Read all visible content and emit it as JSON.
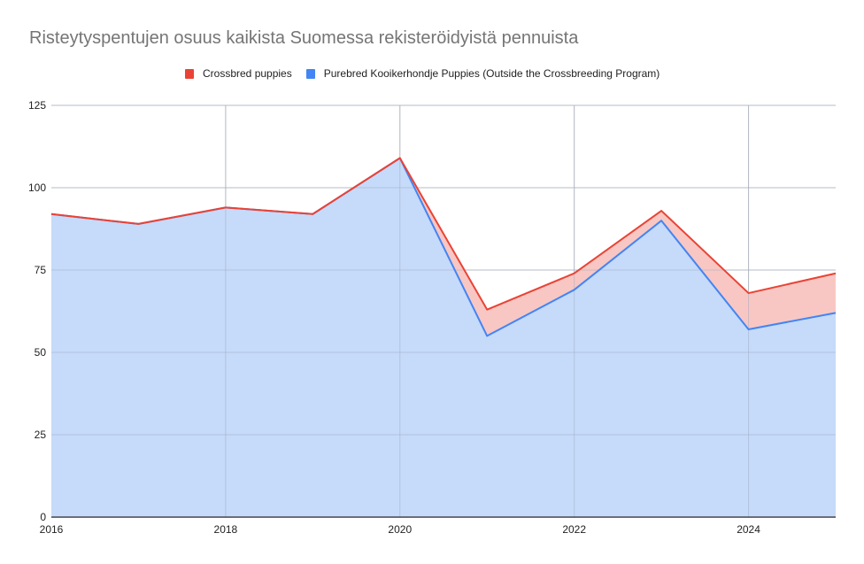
{
  "chart_data": {
    "type": "area",
    "stacked": true,
    "title": "Risteytyspentujen osuus kaikista Suomessa rekisteröidyistä pennuista",
    "xlabel": "",
    "ylabel": "",
    "x": [
      2016,
      2017,
      2018,
      2019,
      2020,
      2021,
      2022,
      2023,
      2024,
      2025
    ],
    "series": [
      {
        "name": "Purebred Kooikerhondje Puppies (Outside the Crossbreeding Program)",
        "color": "#4285f4",
        "fill": "#c6daf9",
        "values": [
          92,
          89,
          94,
          92,
          109,
          55,
          69,
          90,
          57,
          62
        ]
      },
      {
        "name": "Crossbred puppies",
        "color": "#ea4335",
        "fill": "#f8c7c3",
        "values": [
          0,
          0,
          0,
          0,
          0,
          8,
          5,
          3,
          11,
          12
        ]
      }
    ],
    "stacked_totals": [
      92,
      89,
      94,
      92,
      109,
      63,
      74,
      93,
      68,
      74
    ],
    "ylim": [
      0,
      125
    ],
    "yticks": [
      0,
      25,
      50,
      75,
      100,
      125
    ],
    "xticks": [
      2016,
      2018,
      2020,
      2022,
      2024
    ],
    "grid": true,
    "legend_position": "top"
  },
  "legend": [
    {
      "label": "Crossbred puppies",
      "color": "#ea4335"
    },
    {
      "label": "Purebred Kooikerhondje Puppies (Outside the Crossbreeding Program)",
      "color": "#4285f4"
    }
  ]
}
